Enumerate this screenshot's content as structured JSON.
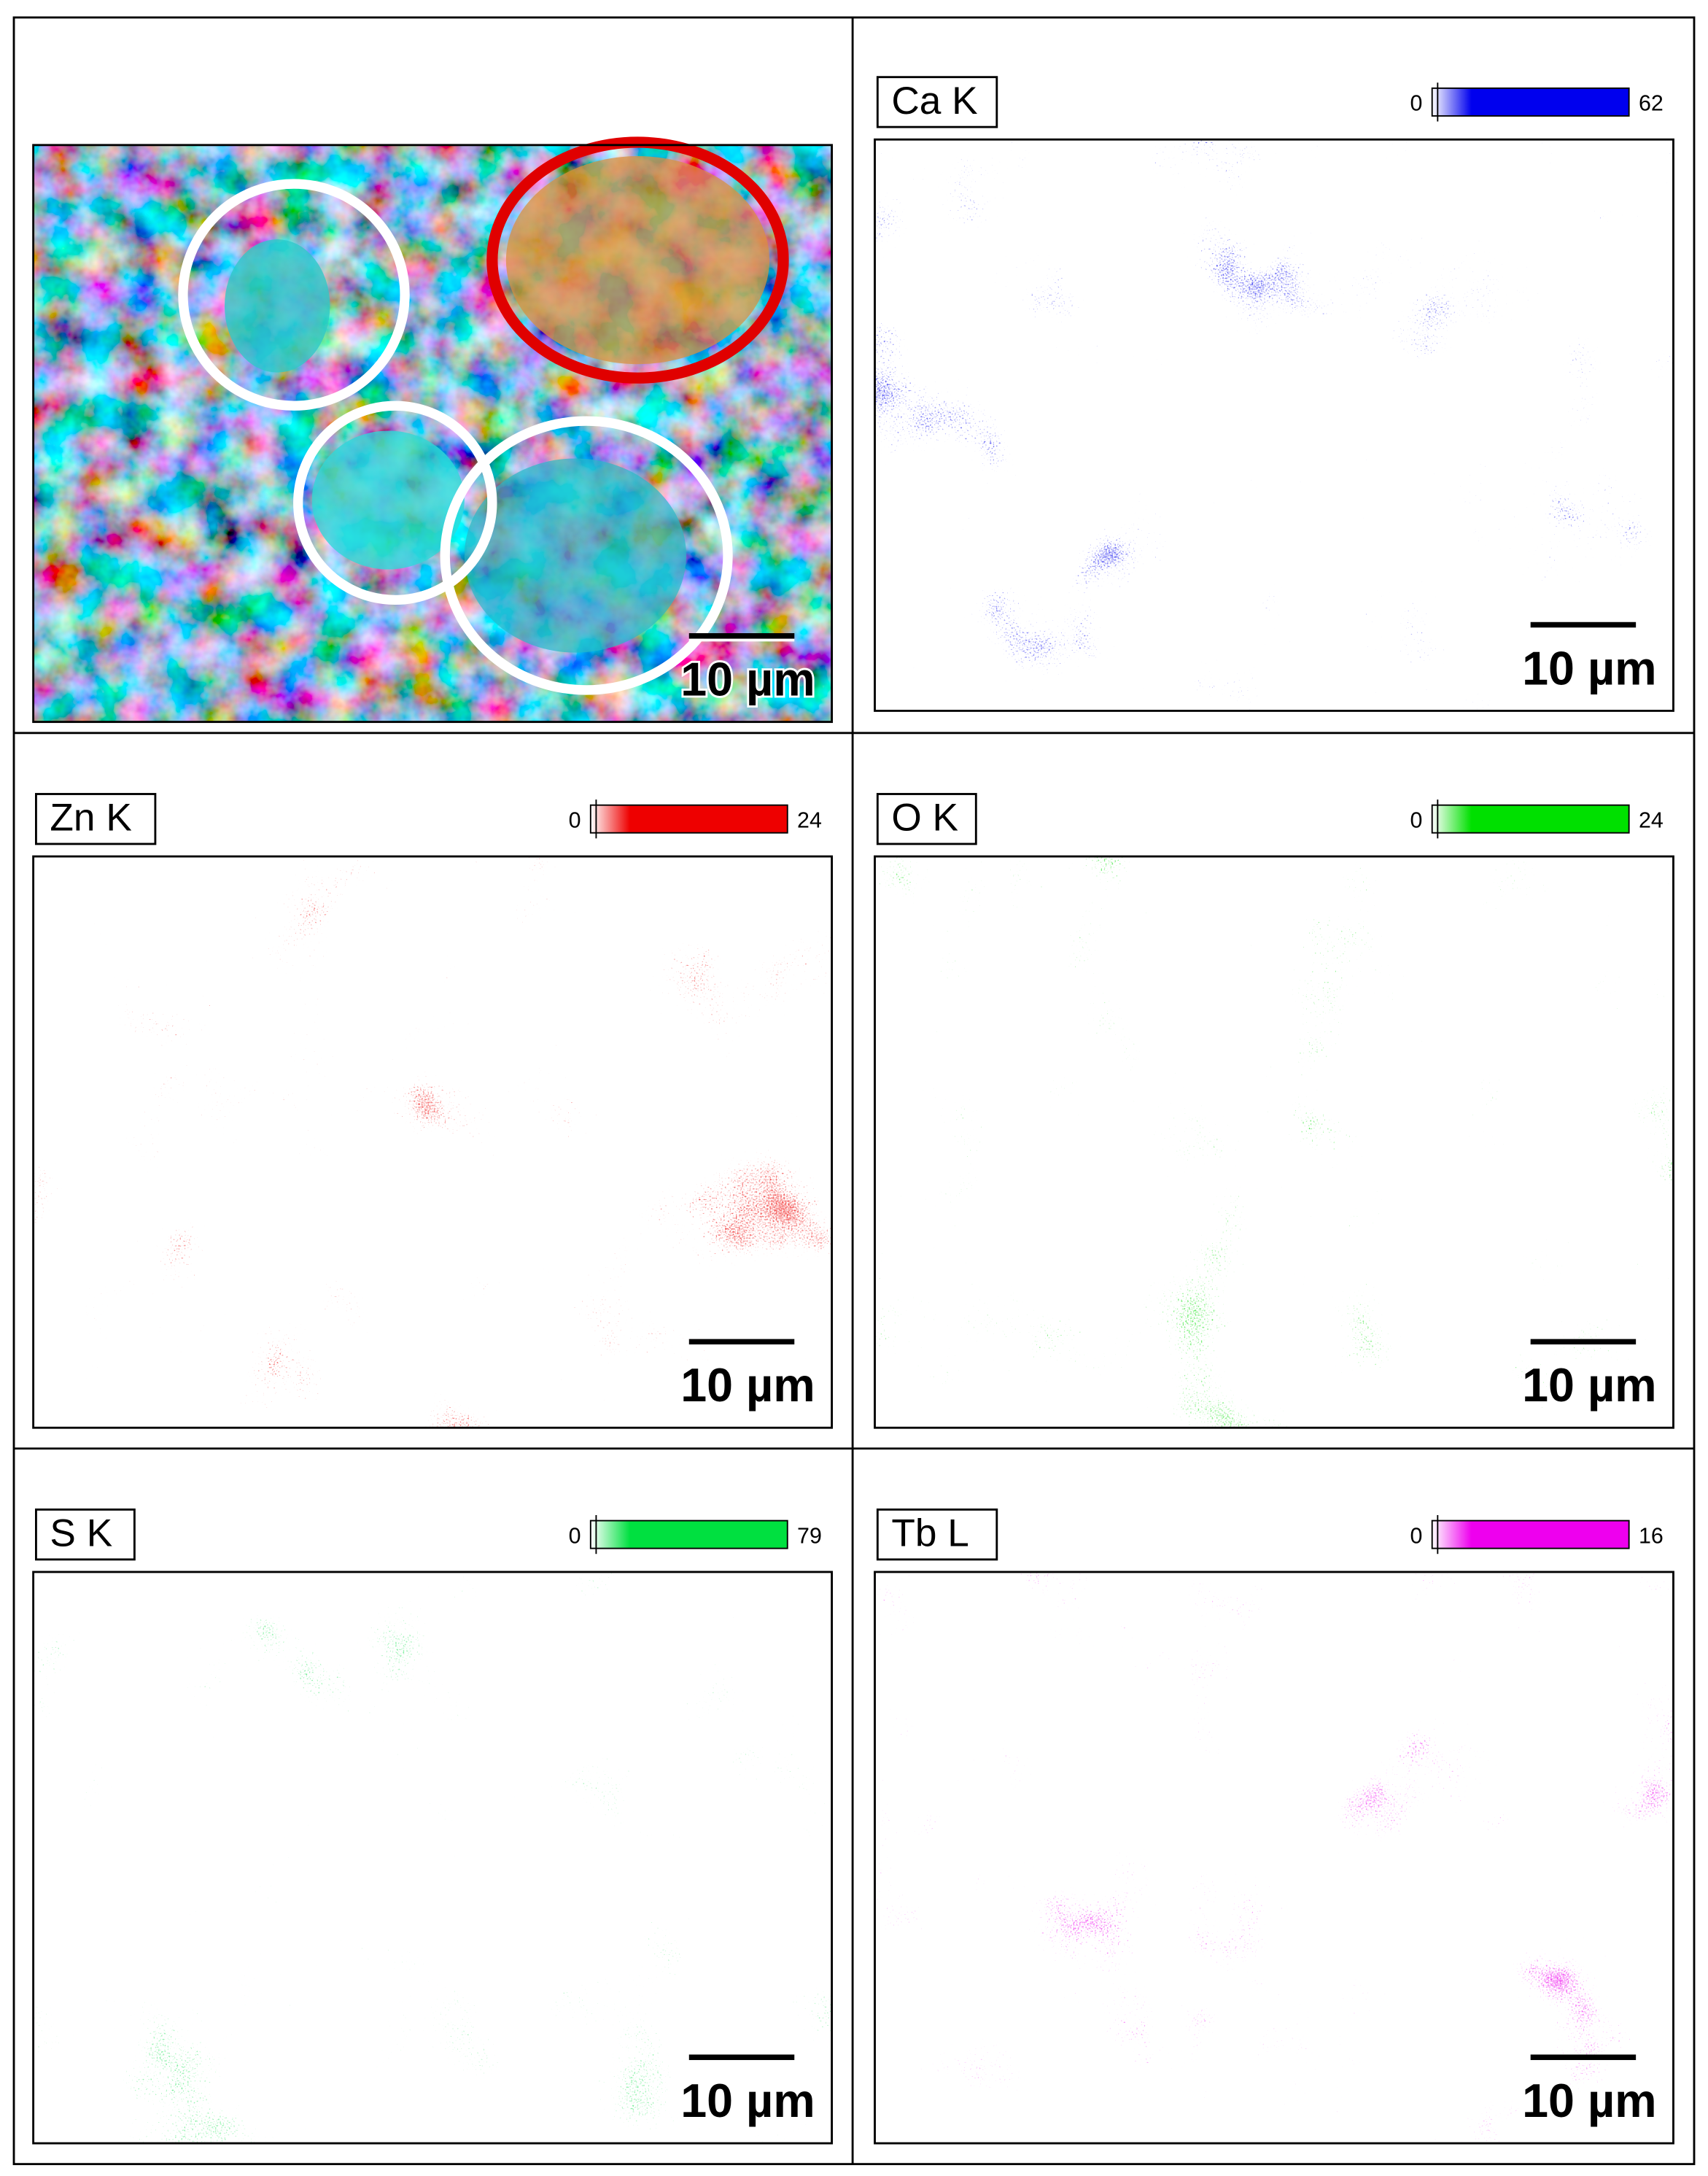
{
  "panels": [
    {
      "scale_bar": "10 µm"
    },
    {
      "label": "Ca K",
      "scale_min": 0,
      "scale_max": 62,
      "scale_bar": "10 µm",
      "color": "#0000ee"
    },
    {
      "label": "Zn K",
      "scale_min": 0,
      "scale_max": 24,
      "scale_bar": "10 µm",
      "color": "#ee0000"
    },
    {
      "label": "O K",
      "scale_min": 0,
      "scale_max": 24,
      "scale_bar": "10 µm",
      "color": "#00e000"
    },
    {
      "label": "S K",
      "scale_min": 0,
      "scale_max": 79,
      "scale_bar": "10 µm",
      "color": "#00e040"
    },
    {
      "label": "Tb L",
      "scale_min": 0,
      "scale_max": 16,
      "scale_bar": "10 µm",
      "color": "#ee00ee"
    }
  ]
}
